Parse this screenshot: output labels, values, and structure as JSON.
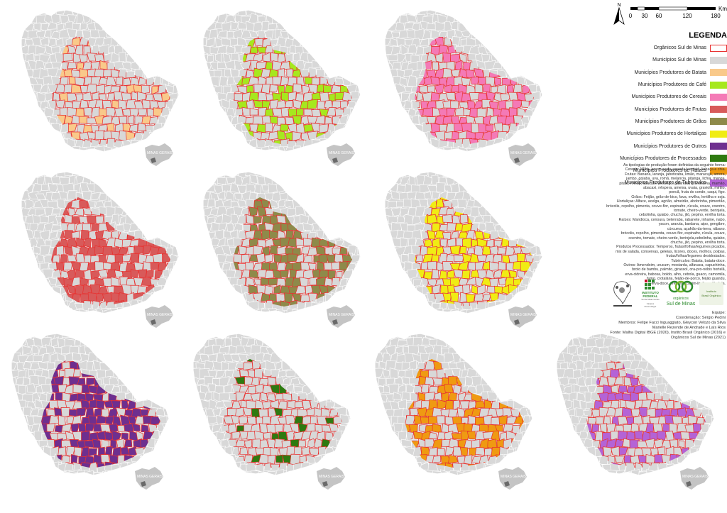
{
  "colors": {
    "border": "#e8302f",
    "base": "#d8d8d8",
    "inset_land": "#c4c4c4"
  },
  "inset_label": "MINAS GERAIS",
  "maps": [
    {
      "theme": "Batata",
      "fill": "#f9c98a",
      "density": 0.22,
      "seed": 11
    },
    {
      "theme": "Café",
      "fill": "#a6e81e",
      "density": 0.32,
      "seed": 23
    },
    {
      "theme": "Cereais",
      "fill": "#f47ab6",
      "density": 0.55,
      "seed": 37
    },
    {
      "theme": "Frutas",
      "fill": "#d85a5a",
      "density": 0.55,
      "seed": 41
    },
    {
      "theme": "Grãos",
      "fill": "#8e8a4a",
      "density": 0.55,
      "seed": 53
    },
    {
      "theme": "Hortaliças",
      "fill": "#f0ec14",
      "density": 0.48,
      "seed": 67
    },
    {
      "theme": "Outros",
      "fill": "#6e2f8f",
      "density": 0.6,
      "seed": 71
    },
    {
      "theme": "Processados",
      "fill": "#2e7a10",
      "density": 0.1,
      "seed": 83
    },
    {
      "theme": "Raízes",
      "fill": "#ef9a12",
      "density": 0.45,
      "seed": 97
    },
    {
      "theme": "Tubérculos",
      "fill": "#b463d6",
      "density": 0.4,
      "seed": 101
    }
  ],
  "scale": {
    "unit": "Km",
    "ticks": [
      "0",
      "30",
      "60",
      "120",
      "180"
    ]
  },
  "north": "N",
  "legend": {
    "title": "LEGENDA",
    "items": [
      {
        "label": "Orgânicos Sul de Minas",
        "color": "#ffffff",
        "border": "#e8302f"
      },
      {
        "label": "Municípios Sul de Minas",
        "color": "#d8d8d8",
        "border": "#d8d8d8"
      },
      {
        "label": "Municípios Produtores de Batata",
        "color": "#f9c98a",
        "border": "#f9c98a"
      },
      {
        "label": "Municípios Produtores de Café",
        "color": "#a6e81e",
        "border": "#a6e81e"
      },
      {
        "label": "Municípios Produtores de Cereais",
        "color": "#f47ab6",
        "border": "#f47ab6"
      },
      {
        "label": "Municípios Produtores de Frutas",
        "color": "#d85a5a",
        "border": "#d85a5a"
      },
      {
        "label": "Municípios Produtores de Grãos",
        "color": "#8e8a4a",
        "border": "#8e8a4a"
      },
      {
        "label": "Municípios Produtores de Hortaliças",
        "color": "#f0ec14",
        "border": "#f0ec14"
      },
      {
        "label": "Municípios Produtores de Outros",
        "color": "#6e2f8f",
        "border": "#6e2f8f"
      },
      {
        "label": "Municípios Produtores de Processados",
        "color": "#2e7a10",
        "border": "#2e7a10"
      },
      {
        "label": "Municípios Produtores de Raízes",
        "color": "#ef9a12",
        "border": "#ef9a12"
      },
      {
        "label": "Municípios Produtores de Tubérculos",
        "color": "#b463d6",
        "border": "#b463d6"
      }
    ]
  },
  "notes": [
    "As tipologias de produção foram definidas da seguinte forma:",
    "Cereais: Milho, arroz, aveia, cevada, centeio, linhaça e chia.",
    "Frutas: Banana, laranja, jaboticaba, limão, maracujá, amora,",
    "jambo, goiaba, uva, romã, melancia, pitanga, lichia, manga,",
    "pitaia, melão, abacate, pêssego, gabiroba, grumixama, mamão,",
    "abacaxi, nêspera, ameixa, uvaia, graviola, mirtilo,",
    "poncã, fruta do conde, caqui, figo.",
    "Grãos: Feijão, grão-de-bico, fava, ervilha, lentilha e soja.",
    "Hortaliças: Alface, acelga, agrião, almeirão, abobrinha, pimentão,",
    "brócolis, repolho, pimenta, couve-flor, espinafre, rúcula, couve, coentro,",
    "tomate, cheiro-verde, berinjela,",
    "cebolinha, quiabo, chuchu, jiló, pepino, ervilha torta.",
    "Raízes: Mandioca, cenoura, beterraba, rabanete, inhame, nabo,",
    "yacon, araruta, bardana, aipo, gengibre,",
    "cúrcuma, açafrão-da-terra, rábano.",
    "brócolis, repolho, pimenta, couve-flor, espinafre, rúcula, couve,",
    "coentro, tomate, cheiro-verde, berinjela,cebolinha, quiabo,",
    "chuchu, jiló, pepino, ervilha torta.",
    "Produtos Processados: Temperos, frutas/folhas/legumes picados,",
    "mix de salada, conservas, geleias, licores, doces, molhos, polpas,",
    "frutas/folhas/legumes desidratados.",
    "Tubérculos: Batata, batata-doce.",
    "Outros: Amendoim, urucum, mostarda, alfavaca, capuchinha,",
    "broto de bambu, palmito, girassol, ora-pro-nóbis hortelã,",
    "erva-cidreira, babosa, boldo, alho, cebola, guaco, camomila,",
    "fumo, crotalária, feijão-de-porco, feijão guandu,",
    "erva-doce, orégano, capim-limão, calêndula."
  ],
  "logos": {
    "ifsul_top": "INSTITUTO",
    "ifsul_main": "FEDERAL",
    "ifsul_sub": "Sul de Minas Gerais",
    "ifsul_campus": "Campus",
    "ifsul_city": "Pouso Alegre",
    "organicos_top": "orgânicos",
    "organicos_main": "Sul de Minas",
    "ibo_line1": "Instituto",
    "ibo_line2": "Brasil Orgânico"
  },
  "credits": [
    "Equipe:",
    "Coordenação: Sérgio Pedini",
    "Membros: Felipe Facci Inguaggiato, Gleycon Velozo da Silva",
    "Marielle Rezende de Andrade e Laís Rios",
    "Fonte: Malha Digital IBGE (2020), Instito Brasil Orgânico (2016) e",
    "Orgânicos Sul de Minas (2021)"
  ]
}
